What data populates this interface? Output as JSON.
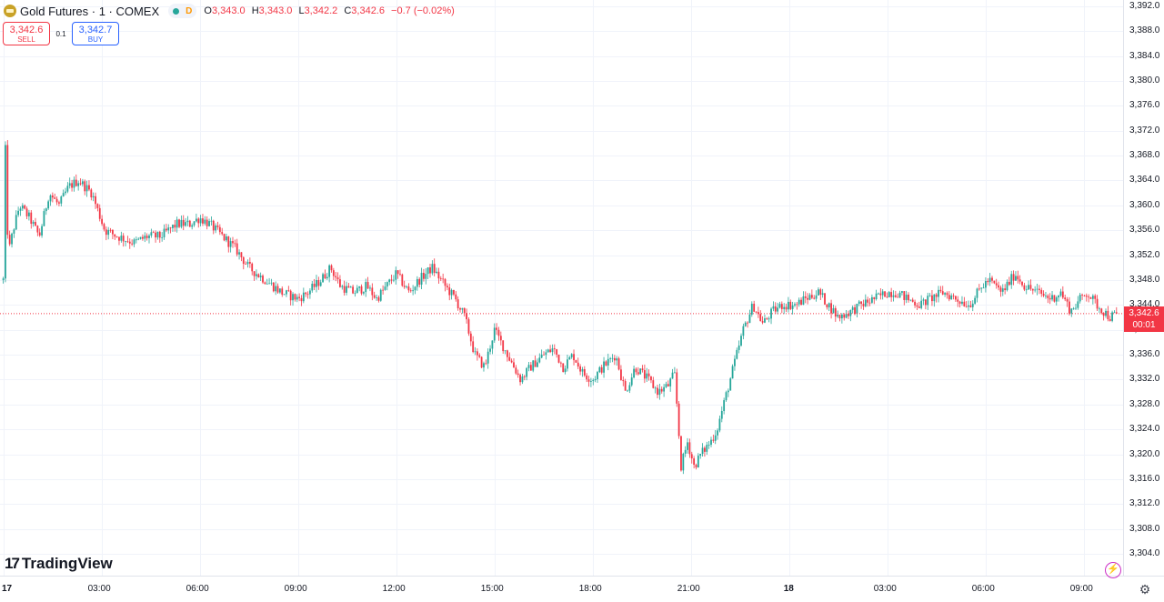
{
  "header": {
    "symbol_title": "Gold Futures · 1 · COMEX",
    "status_letter": "D",
    "ohlc": {
      "o_label": "O",
      "o": "3,343.0",
      "h_label": "H",
      "h": "3,343.0",
      "l_label": "L",
      "l": "3,342.2",
      "c_label": "C",
      "c": "3,342.6",
      "change": "−0.7 (−0.02%)"
    }
  },
  "trade": {
    "sell_price": "3,342.6",
    "sell_label": "SELL",
    "spread": "0.1",
    "buy_price": "3,342.7",
    "buy_label": "BUY"
  },
  "last_price": {
    "price": "3,342.6",
    "countdown": "00:01"
  },
  "branding": {
    "logo_mark": "17",
    "logo_text": "TradingView"
  },
  "colors": {
    "up": "#26a69a",
    "down": "#f23645",
    "accent": "#2962ff",
    "grid": "#f0f3fa"
  },
  "icons": [
    "gold-symbol-icon",
    "market-status-icon",
    "tradingview-logo-icon",
    "flash-icon",
    "gear-icon"
  ],
  "chart_data": {
    "type": "candlestick",
    "title": "Gold Futures · 1 · COMEX",
    "interval_minutes": 1,
    "y_range": [
      3300.5,
      3393.0
    ],
    "y_ticks": [
      "3,392.0",
      "3,388.0",
      "3,384.0",
      "3,380.0",
      "3,376.0",
      "3,372.0",
      "3,368.0",
      "3,364.0",
      "3,360.0",
      "3,356.0",
      "3,352.0",
      "3,348.0",
      "3,344.0",
      "3,340.0",
      "3,336.0",
      "3,332.0",
      "3,328.0",
      "3,324.0",
      "3,320.0",
      "3,316.0",
      "3,312.0",
      "3,308.0",
      "3,304.0"
    ],
    "y_tick_values": [
      3392,
      3388,
      3384,
      3380,
      3376,
      3372,
      3368,
      3364,
      3360,
      3356,
      3352,
      3348,
      3344,
      3340,
      3336,
      3332,
      3328,
      3324,
      3320,
      3316,
      3312,
      3308,
      3304
    ],
    "x_ticks": [
      {
        "label": "17",
        "hours": 0,
        "bold": true
      },
      {
        "label": "03:00",
        "hours": 3
      },
      {
        "label": "06:00",
        "hours": 6
      },
      {
        "label": "09:00",
        "hours": 9
      },
      {
        "label": "12:00",
        "hours": 12
      },
      {
        "label": "15:00",
        "hours": 15
      },
      {
        "label": "18:00",
        "hours": 18
      },
      {
        "label": "21:00",
        "hours": 21
      },
      {
        "label": "18",
        "hours": 24,
        "bold": true
      },
      {
        "label": "03:00",
        "hours": 27
      },
      {
        "label": "06:00",
        "hours": 30
      },
      {
        "label": "09:00",
        "hours": 33
      }
    ],
    "x_range_hours": [
      -0.1,
      34.2
    ],
    "path_hours": [
      0,
      0.05,
      0.15,
      0.3,
      0.5,
      0.8,
      1.1,
      1.4,
      1.7,
      2.0,
      2.3,
      2.7,
      3.1,
      3.5,
      4.0,
      4.4,
      4.8,
      5.3,
      5.7,
      6.0,
      6.3,
      6.7,
      7.1,
      7.5,
      8.0,
      8.5,
      9.0,
      9.3,
      9.7,
      10.0,
      10.3,
      10.7,
      11.1,
      11.4,
      11.7,
      12.0,
      12.4,
      12.7,
      13.1,
      13.5,
      13.8,
      14.1,
      14.4,
      14.7,
      15.0,
      15.4,
      15.8,
      16.1,
      16.5,
      16.8,
      17.1,
      17.4,
      17.7,
      18.0,
      18.3,
      18.7,
      19.0,
      19.3,
      19.7,
      20.0,
      20.3,
      20.5,
      20.6,
      20.7,
      20.9,
      21.1,
      21.3,
      21.6,
      21.8,
      22.0,
      22.3,
      22.6,
      22.9,
      23.2,
      23.5,
      23.8,
      24.2,
      24.5,
      24.9,
      25.2,
      25.5,
      25.9,
      26.2,
      26.6,
      27.0,
      27.3,
      27.6,
      28.0,
      28.3,
      28.7,
      29.1,
      29.5,
      29.9,
      30.1,
      30.5,
      30.9,
      31.2,
      31.6,
      32.0,
      32.3,
      32.6,
      32.9,
      33.1,
      33.4,
      33.8,
      34.0
    ],
    "path_prices": [
      3348,
      3372,
      3352,
      3356,
      3360,
      3358,
      3355,
      3362,
      3360,
      3363,
      3364,
      3362,
      3356,
      3355,
      3354,
      3355,
      3355,
      3357,
      3357,
      3358,
      3357,
      3355,
      3353,
      3350,
      3348,
      3346,
      3345,
      3346,
      3348,
      3350,
      3347,
      3346,
      3347,
      3345,
      3347,
      3349,
      3346,
      3348,
      3350,
      3347,
      3345,
      3342,
      3336,
      3334,
      3340,
      3336,
      3332,
      3334,
      3336,
      3337,
      3334,
      3336,
      3333,
      3332,
      3334,
      3336,
      3330,
      3334,
      3332,
      3330,
      3331,
      3333,
      3326,
      3318,
      3322,
      3318,
      3320,
      3322,
      3324,
      3328,
      3334,
      3340,
      3344,
      3341,
      3343,
      3344,
      3344,
      3345,
      3346,
      3344,
      3342,
      3343,
      3344,
      3345,
      3346,
      3346,
      3345,
      3344,
      3345,
      3346,
      3345,
      3344,
      3347,
      3348,
      3346,
      3349,
      3347,
      3346,
      3345,
      3346,
      3343,
      3345,
      3346,
      3344,
      3342,
      3342.6
    ],
    "last_price": 3342.6,
    "candle_count": 520
  }
}
